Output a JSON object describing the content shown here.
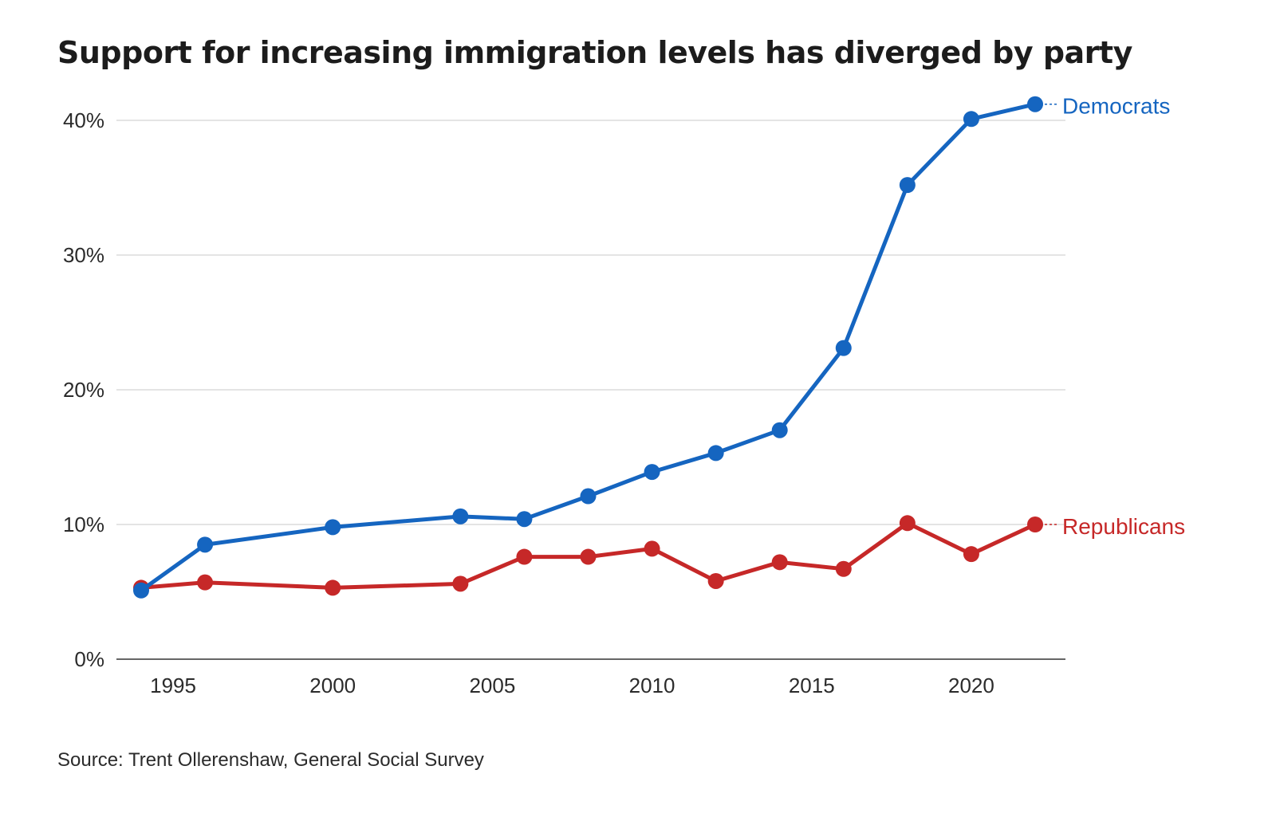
{
  "chart_data": {
    "type": "line",
    "title": "Support for increasing immigration levels has diverged by party",
    "source": "Source: Trent Ollerenshaw, General Social Survey",
    "xlabel": "",
    "ylabel": "",
    "xlim": [
      1994,
      2022
    ],
    "ylim": [
      0,
      40
    ],
    "x_ticks": [
      1995,
      2000,
      2005,
      2010,
      2015,
      2020
    ],
    "y_ticks": [
      0,
      10,
      20,
      30,
      40
    ],
    "y_tick_labels": [
      "0%",
      "10%",
      "20%",
      "30%",
      "40%"
    ],
    "grid": true,
    "legend": "direct labels at line ends",
    "series": [
      {
        "name": "Democrats",
        "color": "#1565c0",
        "x": [
          1994,
          1996,
          2000,
          2004,
          2006,
          2008,
          2010,
          2012,
          2014,
          2016,
          2018,
          2020,
          2022
        ],
        "values": [
          5.1,
          8.5,
          9.8,
          10.6,
          10.4,
          12.1,
          13.9,
          15.3,
          17.0,
          23.1,
          35.2,
          40.1,
          41.2
        ]
      },
      {
        "name": "Republicans",
        "color": "#c62828",
        "x": [
          1994,
          1996,
          2000,
          2004,
          2006,
          2008,
          2010,
          2012,
          2014,
          2016,
          2018,
          2020,
          2022
        ],
        "values": [
          5.3,
          5.7,
          5.3,
          5.6,
          7.6,
          7.6,
          8.2,
          5.8,
          7.2,
          6.7,
          10.1,
          7.8,
          10.0
        ]
      }
    ]
  }
}
